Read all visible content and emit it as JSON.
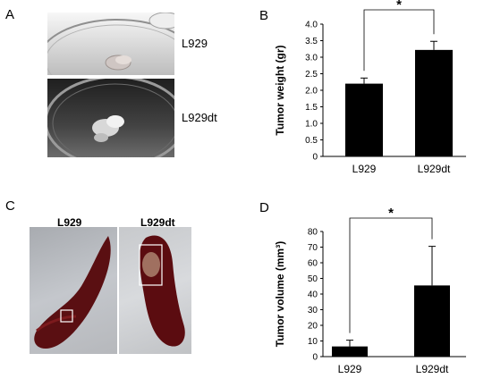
{
  "panels": {
    "a": {
      "letter": "A",
      "top_label": "L929",
      "bottom_label": "L929dt"
    },
    "c": {
      "letter": "C",
      "left_title": "L929",
      "right_title": "L929dt"
    }
  },
  "chart_data": [
    {
      "panel": "B",
      "type": "bar",
      "categories": [
        "L929",
        "L929dt"
      ],
      "values": [
        2.2,
        3.22
      ],
      "errors": [
        0.17,
        0.26
      ],
      "ylabel": "Tumor weight (gr)",
      "xlabel": "",
      "ylim": [
        0,
        4
      ],
      "yticks": [
        "0",
        "0.5",
        "1.0",
        "1.5",
        "2.0",
        "2.5",
        "3.0",
        "3.5",
        "4.0"
      ],
      "significance": "*",
      "bar_color": "#000000"
    },
    {
      "panel": "D",
      "type": "bar",
      "categories": [
        "L929",
        "L929dt"
      ],
      "values": [
        6.5,
        45.5
      ],
      "errors": [
        4.0,
        25.0
      ],
      "ylabel": "Tumor volume (mm³)",
      "xlabel": "",
      "ylim": [
        0,
        80
      ],
      "yticks": [
        "0",
        "10",
        "20",
        "30",
        "40",
        "50",
        "60",
        "70",
        "80"
      ],
      "significance": "*",
      "bar_color": "#000000"
    }
  ]
}
